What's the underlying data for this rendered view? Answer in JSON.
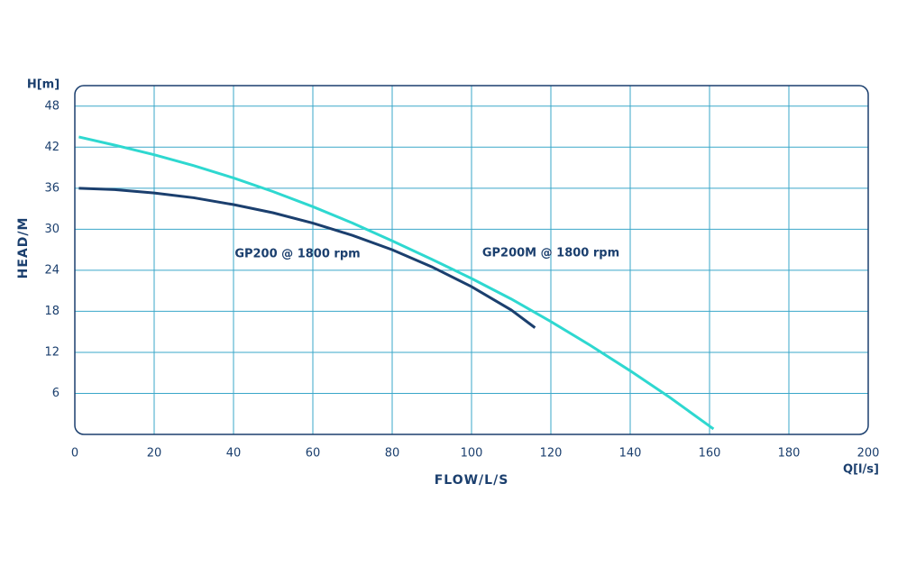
{
  "chart_data": {
    "type": "line",
    "x_label": "FLOW/L/S",
    "y_label": "HEAD/M",
    "x_unit": "Q[l/s]",
    "y_unit": "H[m]",
    "xlim": [
      0,
      200
    ],
    "ylim": [
      0,
      51
    ],
    "xticks": [
      0,
      20,
      40,
      60,
      80,
      100,
      120,
      140,
      160,
      180,
      200
    ],
    "yticks": [
      6,
      12,
      18,
      24,
      30,
      36,
      42,
      48
    ],
    "grid": true,
    "series": [
      {
        "name": "GP200 @ 1800 rpm",
        "color": "#1b3f6e",
        "x": [
          1,
          10,
          20,
          30,
          40,
          50,
          60,
          70,
          80,
          90,
          100,
          110,
          116
        ],
        "values": [
          36,
          35.8,
          35.3,
          34.6,
          33.6,
          32.4,
          30.9,
          29.1,
          27,
          24.5,
          21.6,
          18.2,
          15.6
        ]
      },
      {
        "name": "GP200M @ 1800 rpm",
        "color": "#2ed8d0",
        "x": [
          1,
          10,
          20,
          30,
          40,
          50,
          60,
          70,
          80,
          90,
          100,
          110,
          120,
          130,
          140,
          150,
          161
        ],
        "values": [
          43.5,
          42.3,
          40.9,
          39.3,
          37.5,
          35.5,
          33.3,
          30.9,
          28.3,
          25.6,
          22.8,
          19.8,
          16.5,
          13,
          9.3,
          5.4,
          0.8
        ]
      }
    ]
  }
}
